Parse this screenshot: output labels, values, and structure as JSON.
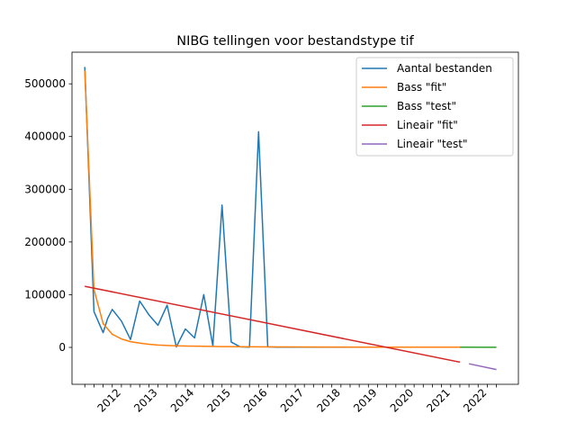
{
  "chart_data": {
    "type": "line",
    "title": "NIBG tellingen voor bestandstype tif",
    "xlabel": "",
    "ylabel": "",
    "ylim": [
      -70000,
      560000
    ],
    "xlim": [
      2010.9,
      2023.1
    ],
    "grid": false,
    "legend_placement": "top-right",
    "y_ticks": [
      0,
      100000,
      200000,
      300000,
      400000,
      500000
    ],
    "y_tick_labels": [
      "0",
      "100000",
      "200000",
      "300000",
      "400000",
      "500000"
    ],
    "x_tick_labels": [
      "2012",
      "2013",
      "2014",
      "2015",
      "2016",
      "2017",
      "2018",
      "2019",
      "2020",
      "2021",
      "2022"
    ],
    "x_tick_positions": [
      2012.25,
      2013.25,
      2014.25,
      2015.25,
      2016.25,
      2017.25,
      2018.25,
      2019.25,
      2020.25,
      2021.25,
      2022.25
    ],
    "x_minor_ticks": [
      2011.25,
      2011.5,
      2011.75,
      2012.0,
      2012.25,
      2012.5,
      2012.75,
      2013.0,
      2013.25,
      2013.5,
      2013.75,
      2014.0,
      2014.25,
      2014.5,
      2014.75,
      2015.0,
      2015.25,
      2015.5,
      2015.75,
      2016.0,
      2016.25,
      2016.5,
      2016.75,
      2017.0,
      2017.25,
      2017.5,
      2017.75,
      2018.0,
      2018.25,
      2018.5,
      2018.75,
      2019.0,
      2019.25,
      2019.5,
      2019.75,
      2020.0,
      2020.25,
      2020.5,
      2020.75,
      2021.0,
      2021.25,
      2021.5,
      2021.75,
      2022.0,
      2022.25,
      2022.5
    ],
    "series": [
      {
        "name": "Aantal bestanden",
        "color": "#1f77b4",
        "x": [
          2011.25,
          2011.5,
          2011.75,
          2011.875,
          2012.0,
          2012.25,
          2012.5,
          2012.75,
          2013.0,
          2013.25,
          2013.5,
          2013.75,
          2014.0,
          2014.25,
          2014.5,
          2014.75,
          2015.0,
          2015.25,
          2015.5,
          2015.75,
          2016.0,
          2016.25,
          2016.5,
          2016.75,
          2017.0,
          2017.5,
          2018.0,
          2018.5,
          2019.0,
          2019.5,
          2020.0,
          2020.5,
          2021.0,
          2021.5
        ],
        "y": [
          532000,
          68000,
          28000,
          55000,
          72000,
          50000,
          15000,
          88000,
          62000,
          42000,
          80000,
          1000,
          35000,
          18000,
          100000,
          3000,
          270000,
          10000,
          1000,
          500,
          409000,
          1000,
          500,
          500,
          500,
          500,
          500,
          500,
          500,
          500,
          500,
          500,
          500,
          500
        ]
      },
      {
        "name": "Bass \"fit\"",
        "color": "#ff7f0e",
        "x": [
          2011.25,
          2011.5,
          2011.75,
          2012.0,
          2012.25,
          2012.5,
          2012.75,
          2013.0,
          2013.25,
          2013.5,
          2013.75,
          2014.0,
          2014.5,
          2015.0,
          2015.5,
          2016.0,
          2017.0,
          2018.0,
          2019.0,
          2020.0,
          2021.0,
          2021.5
        ],
        "y": [
          525000,
          110000,
          45000,
          25000,
          16000,
          11000,
          8000,
          6000,
          4500,
          3500,
          3000,
          2500,
          2000,
          1500,
          1200,
          1000,
          800,
          600,
          500,
          400,
          300,
          300
        ]
      },
      {
        "name": "Bass \"test\"",
        "color": "#2ca02c",
        "x": [
          2021.5,
          2022.5
        ],
        "y": [
          300,
          250
        ]
      },
      {
        "name": "Lineair \"fit\"",
        "color": "#d62728",
        "x": [
          2011.25,
          2021.5
        ],
        "y": [
          116000,
          -28000
        ]
      },
      {
        "name": "Lineair \"test\"",
        "color": "#9467bd",
        "x": [
          2021.75,
          2022.5
        ],
        "y": [
          -31000,
          -42000
        ]
      }
    ]
  }
}
